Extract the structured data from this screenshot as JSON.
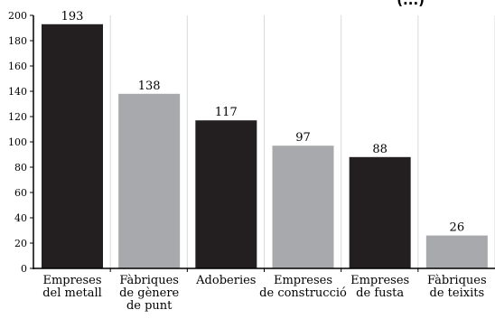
{
  "chart_data": {
    "type": "bar",
    "title_fragment": "(...)",
    "categories": [
      [
        "Empreses",
        "del metall"
      ],
      [
        "Fàbriques",
        "de gènere",
        "de punt"
      ],
      [
        "Adoberies"
      ],
      [
        "Empreses",
        "de construcció"
      ],
      [
        "Empreses",
        "de fusta"
      ],
      [
        "Fàbriques",
        "de teixits"
      ]
    ],
    "values": [
      193,
      138,
      117,
      97,
      88,
      26
    ],
    "bar_colors": [
      "#231f20",
      "#a7a9ac",
      "#231f20",
      "#a7a9ac",
      "#231f20",
      "#a7a9ac"
    ],
    "ylim": [
      0,
      200
    ],
    "yticks": [
      0,
      20,
      40,
      60,
      80,
      100,
      120,
      140,
      160,
      180,
      200
    ],
    "grid": "vertical",
    "xlabel": "",
    "ylabel": ""
  }
}
